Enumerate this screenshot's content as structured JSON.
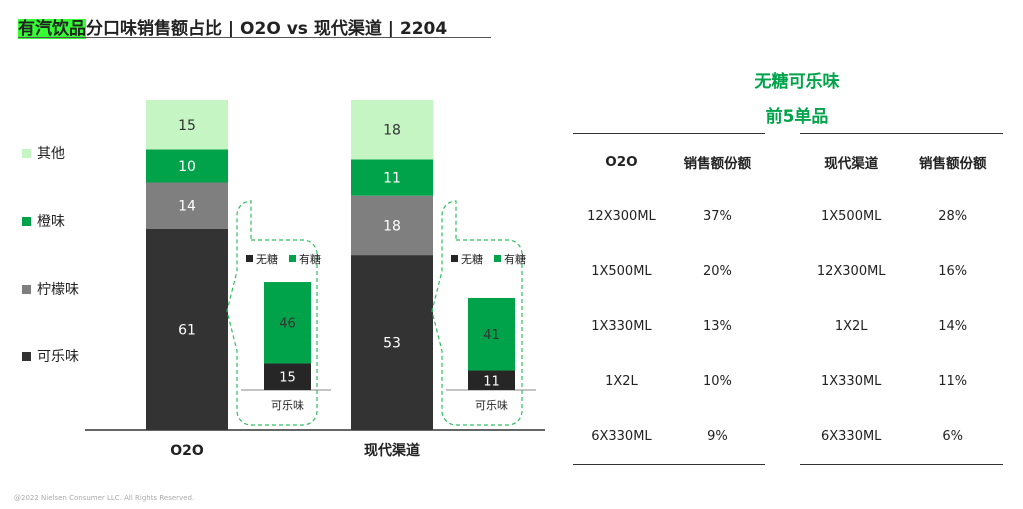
{
  "title": {
    "highlight": "有汽饮品",
    "rest": "分口味销售额占比 | O2O vs 现代渠道 | 2204"
  },
  "legend": [
    {
      "label": "其他",
      "color": "#c6f5c4"
    },
    {
      "label": "橙味",
      "color": "#00a34a"
    },
    {
      "label": "柠檬味",
      "color": "#7f7f7f"
    },
    {
      "label": "可乐味",
      "color": "#333333"
    }
  ],
  "chart_data": {
    "type": "bar",
    "stacked": true,
    "categories": [
      "O2O",
      "现代渠道"
    ],
    "series": [
      {
        "name": "可乐味",
        "values": [
          61,
          53
        ],
        "color": "#333333"
      },
      {
        "name": "柠檬味",
        "values": [
          14,
          18
        ],
        "color": "#7f7f7f"
      },
      {
        "name": "橙味",
        "values": [
          10,
          11
        ],
        "color": "#00a34a"
      },
      {
        "name": "其他",
        "values": [
          15,
          18
        ],
        "color": "#c6f5c4"
      }
    ],
    "ylim": [
      0,
      100
    ],
    "insets": [
      {
        "category": "可乐味",
        "parent": "O2O",
        "series": [
          {
            "name": "无糖",
            "value": 15,
            "color": "#262626"
          },
          {
            "name": "有糖",
            "value": 46,
            "color": "#00a34a"
          }
        ]
      },
      {
        "category": "可乐味",
        "parent": "现代渠道",
        "series": [
          {
            "name": "无糖",
            "value": 11,
            "color": "#262626"
          },
          {
            "name": "有糖",
            "value": 41,
            "color": "#00a34a"
          }
        ]
      }
    ]
  },
  "right_title": [
    "无糖可乐味",
    "前5单品"
  ],
  "tables": [
    {
      "headers": [
        "O2O",
        "销售额份额"
      ],
      "rows": [
        [
          "12X300ML",
          "37%"
        ],
        [
          "1X500ML",
          "20%"
        ],
        [
          "1X330ML",
          "13%"
        ],
        [
          "1X2L",
          "10%"
        ],
        [
          "6X330ML",
          "9%"
        ]
      ]
    },
    {
      "headers": [
        "现代渠道",
        "销售额份额"
      ],
      "rows": [
        [
          "1X500ML",
          "28%"
        ],
        [
          "12X300ML",
          "16%"
        ],
        [
          "1X2L",
          "14%"
        ],
        [
          "1X330ML",
          "11%"
        ],
        [
          "6X330ML",
          "6%"
        ]
      ]
    }
  ],
  "copyright": "@2022 Nielsen Consumer LLC. All Rights Reserved."
}
